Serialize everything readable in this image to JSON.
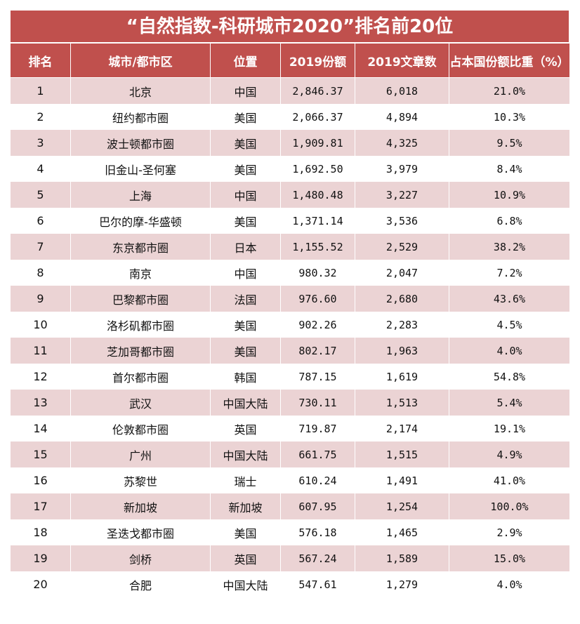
{
  "title": "“自然指数-科研城市2020”排名前20位",
  "headers": [
    "排名",
    "城市/都市区",
    "位置",
    "2019份额",
    "2019文章数",
    "占本国份额比重（%）"
  ],
  "rows": [
    [
      "1",
      "北京",
      "中国",
      "2,846.37",
      "6,018",
      "21.0%"
    ],
    [
      "2",
      "纽约都市圈",
      "美国",
      "2,066.37",
      "4,894",
      "10.3%"
    ],
    [
      "3",
      "波士顿都市圈",
      "美国",
      "1,909.81",
      "4,325",
      "9.5%"
    ],
    [
      "4",
      "旧金山-圣何塞",
      "美国",
      "1,692.50",
      "3,979",
      "8.4%"
    ],
    [
      "5",
      "上海",
      "中国",
      "1,480.48",
      "3,227",
      "10.9%"
    ],
    [
      "6",
      "巴尔的摩-华盛顿",
      "美国",
      "1,371.14",
      "3,536",
      "6.8%"
    ],
    [
      "7",
      "东京都市圈",
      "日本",
      "1,155.52",
      "2,529",
      "38.2%"
    ],
    [
      "8",
      "南京",
      "中国",
      "980.32",
      "2,047",
      "7.2%"
    ],
    [
      "9",
      "巴黎都市圈",
      "法国",
      "976.60",
      "2,680",
      "43.6%"
    ],
    [
      "10",
      "洛杉矶都市圈",
      "美国",
      "902.26",
      "2,283",
      "4.5%"
    ],
    [
      "11",
      "芝加哥都市圈",
      "美国",
      "802.17",
      "1,963",
      "4.0%"
    ],
    [
      "12",
      "首尔都市圈",
      "韩国",
      "787.15",
      "1,619",
      "54.8%"
    ],
    [
      "13",
      "武汉",
      "中国大陆",
      "730.11",
      "1,513",
      "5.4%"
    ],
    [
      "14",
      "伦敦都市圈",
      "英国",
      "719.87",
      "2,174",
      "19.1%"
    ],
    [
      "15",
      "广州",
      "中国大陆",
      "661.75",
      "1,515",
      "4.9%"
    ],
    [
      "16",
      "苏黎世",
      "瑞士",
      "610.24",
      "1,491",
      "41.0%"
    ],
    [
      "17",
      "新加坡",
      "新加坡",
      "607.95",
      "1,254",
      "100.0%"
    ],
    [
      "18",
      "圣迭戈都市圈",
      "美国",
      "576.18",
      "1,465",
      "2.9%"
    ],
    [
      "19",
      "剑桥",
      "英国",
      "567.24",
      "1,589",
      "15.0%"
    ],
    [
      "20",
      "合肥",
      "中国大陆",
      "547.61",
      "1,279",
      "4.0%"
    ]
  ],
  "colors": {
    "header_bg": "#c0504d",
    "band_odd": "#ebd3d4",
    "band_even": "#ffffff"
  }
}
